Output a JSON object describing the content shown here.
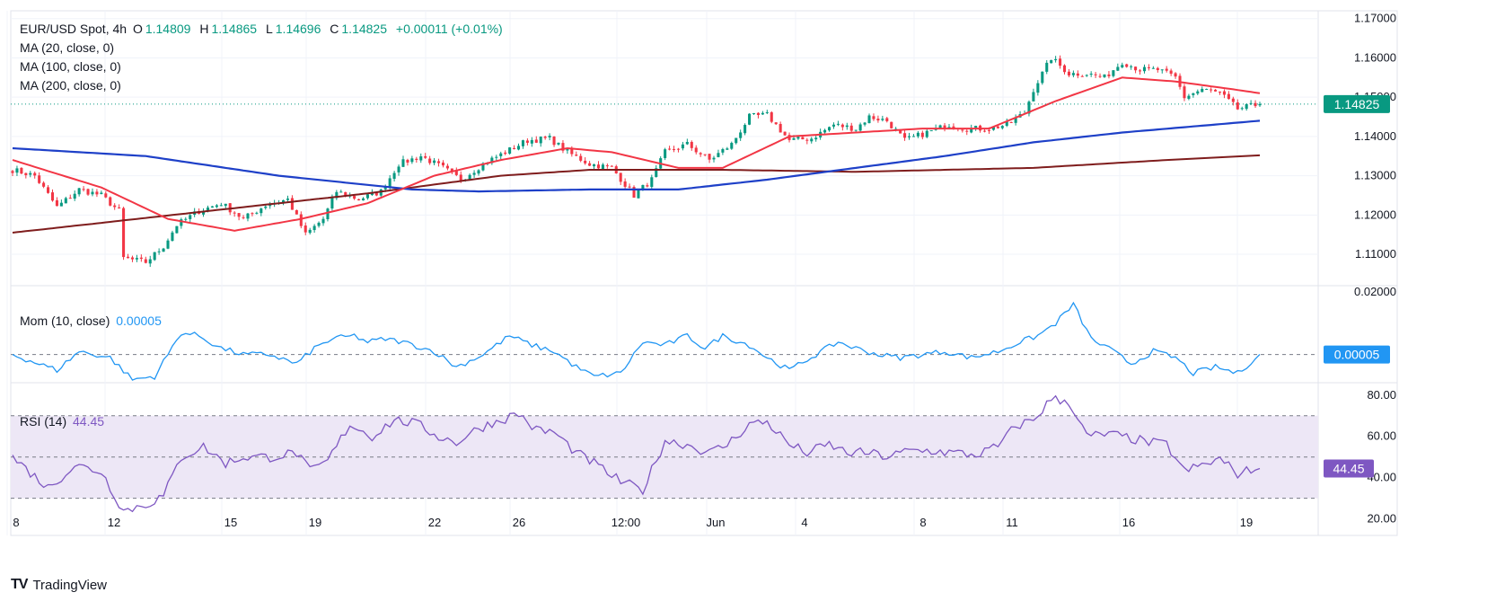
{
  "header": {
    "symbol": "EUR/USD Spot, 4h",
    "open_label": "O",
    "open": "1.14809",
    "high_label": "H",
    "high": "1.14865",
    "low_label": "L",
    "low": "1.14696",
    "close_label": "C",
    "close": "1.14825",
    "change": "+0.00011 (+0.01%)"
  },
  "legend": {
    "ma20": "MA (20, close, 0)",
    "ma100": "MA (100, close, 0)",
    "ma200": "MA (200, close, 0)",
    "mom_label": "Mom (10, close)",
    "mom_value": "0.00005",
    "rsi_label": "RSI (14)",
    "rsi_value": "44.45"
  },
  "brand": {
    "name": "TradingView"
  },
  "colors": {
    "up": "#089981",
    "down": "#f23645",
    "ma20": "#f23645",
    "ma100": "#1e40c8",
    "ma200": "#7f1d1d",
    "mom": "#2196f3",
    "rsi": "#7e57c2",
    "rsi_band": "#ede7f6",
    "grid": "#f0f3fa",
    "axis_text": "#131722"
  },
  "chart_data": [
    {
      "type": "candlestick",
      "title": "EUR/USD Spot, 4h",
      "price_ticks": [
        "1.17000",
        "1.16000",
        "1.15000",
        "1.14000",
        "1.13000",
        "1.12000",
        "1.11000"
      ],
      "last_price": "1.14825",
      "ylim": [
        1.102,
        1.172
      ],
      "x_ticks": [
        "8",
        "12",
        "15",
        "19",
        "22",
        "26",
        "12:00",
        "Jun",
        "4",
        "8",
        "11",
        "16",
        "19"
      ],
      "anchors": [
        [
          0,
          1.1315
        ],
        [
          5,
          1.13
        ],
        [
          10,
          1.122
        ],
        [
          15,
          1.1265
        ],
        [
          20,
          1.125
        ],
        [
          24,
          1.121
        ],
        [
          25,
          1.109
        ],
        [
          30,
          1.108
        ],
        [
          34,
          1.112
        ],
        [
          37,
          1.1175
        ],
        [
          42,
          1.121
        ],
        [
          47,
          1.123
        ],
        [
          52,
          1.119
        ],
        [
          57,
          1.1225
        ],
        [
          62,
          1.124
        ],
        [
          66,
          1.115
        ],
        [
          70,
          1.119
        ],
        [
          73,
          1.126
        ],
        [
          78,
          1.124
        ],
        [
          83,
          1.126
        ],
        [
          87,
          1.133
        ],
        [
          92,
          1.135
        ],
        [
          97,
          1.132
        ],
        [
          101,
          1.129
        ],
        [
          106,
          1.133
        ],
        [
          111,
          1.136
        ],
        [
          116,
          1.139
        ],
        [
          121,
          1.1395
        ],
        [
          125,
          1.136
        ],
        [
          130,
          1.133
        ],
        [
          135,
          1.132
        ],
        [
          140,
          1.125
        ],
        [
          144,
          1.129
        ],
        [
          147,
          1.136
        ],
        [
          152,
          1.138
        ],
        [
          157,
          1.134
        ],
        [
          162,
          1.138
        ],
        [
          166,
          1.145
        ],
        [
          170,
          1.1455
        ],
        [
          175,
          1.139
        ],
        [
          180,
          1.1395
        ],
        [
          185,
          1.143
        ],
        [
          190,
          1.142
        ],
        [
          193,
          1.145
        ],
        [
          197,
          1.144
        ],
        [
          201,
          1.139
        ],
        [
          206,
          1.141
        ],
        [
          211,
          1.143
        ],
        [
          215,
          1.142
        ],
        [
          220,
          1.142
        ],
        [
          224,
          1.143
        ],
        [
          228,
          1.146
        ],
        [
          230,
          1.152
        ],
        [
          234,
          1.16
        ],
        [
          238,
          1.156
        ],
        [
          242,
          1.156
        ],
        [
          246,
          1.155
        ],
        [
          250,
          1.159
        ],
        [
          254,
          1.157
        ],
        [
          258,
          1.157
        ],
        [
          262,
          1.155
        ],
        [
          264,
          1.15
        ],
        [
          268,
          1.152
        ],
        [
          272,
          1.151
        ],
        [
          276,
          1.147
        ],
        [
          281,
          1.1482
        ]
      ],
      "ma20": [
        [
          0,
          1.134
        ],
        [
          20,
          1.127
        ],
        [
          35,
          1.119
        ],
        [
          50,
          1.116
        ],
        [
          65,
          1.119
        ],
        [
          80,
          1.123
        ],
        [
          95,
          1.13
        ],
        [
          110,
          1.134
        ],
        [
          125,
          1.137
        ],
        [
          135,
          1.136
        ],
        [
          150,
          1.132
        ],
        [
          160,
          1.132
        ],
        [
          175,
          1.14
        ],
        [
          190,
          1.141
        ],
        [
          205,
          1.142
        ],
        [
          220,
          1.142
        ],
        [
          235,
          1.149
        ],
        [
          250,
          1.155
        ],
        [
          262,
          1.154
        ],
        [
          275,
          1.152
        ],
        [
          281,
          1.151
        ]
      ],
      "ma100": [
        [
          0,
          1.137
        ],
        [
          30,
          1.135
        ],
        [
          60,
          1.13
        ],
        [
          90,
          1.1265
        ],
        [
          105,
          1.126
        ],
        [
          130,
          1.1265
        ],
        [
          150,
          1.1265
        ],
        [
          170,
          1.129
        ],
        [
          190,
          1.132
        ],
        [
          210,
          1.135
        ],
        [
          230,
          1.1385
        ],
        [
          250,
          1.141
        ],
        [
          281,
          1.144
        ]
      ],
      "ma200": [
        [
          0,
          1.1155
        ],
        [
          40,
          1.1205
        ],
        [
          80,
          1.1255
        ],
        [
          110,
          1.13
        ],
        [
          130,
          1.1315
        ],
        [
          160,
          1.1315
        ],
        [
          190,
          1.131
        ],
        [
          230,
          1.132
        ],
        [
          260,
          1.134
        ],
        [
          281,
          1.1352
        ]
      ]
    },
    {
      "type": "line",
      "title": "Mom (10, close)",
      "name": "Mom (10, close)",
      "y_ticks": [
        "0.02000"
      ],
      "ylim": [
        -0.009,
        0.022
      ],
      "zero_line": 0,
      "last_value": "0.00005",
      "anchors": [
        [
          0,
          0
        ],
        [
          10,
          -0.005
        ],
        [
          15,
          0.001
        ],
        [
          22,
          -0.001
        ],
        [
          27,
          -0.008
        ],
        [
          32,
          -0.007
        ],
        [
          38,
          0.007
        ],
        [
          42,
          0.006
        ],
        [
          47,
          0.002
        ],
        [
          52,
          0
        ],
        [
          58,
          0
        ],
        [
          64,
          -0.003
        ],
        [
          68,
          0.002
        ],
        [
          72,
          0.005
        ],
        [
          77,
          0.006
        ],
        [
          80,
          0.004
        ],
        [
          84,
          0.005
        ],
        [
          88,
          0.004
        ],
        [
          95,
          0.001
        ],
        [
          100,
          -0.004
        ],
        [
          106,
          0
        ],
        [
          112,
          0.006
        ],
        [
          117,
          0.003
        ],
        [
          122,
          0.001
        ],
        [
          127,
          -0.004
        ],
        [
          131,
          -0.007
        ],
        [
          137,
          -0.006
        ],
        [
          142,
          0.004
        ],
        [
          147,
          0.003
        ],
        [
          152,
          0.006
        ],
        [
          156,
          0.002
        ],
        [
          160,
          0.006
        ],
        [
          166,
          0.003
        ],
        [
          170,
          -0.001
        ],
        [
          175,
          -0.005
        ],
        [
          181,
          0
        ],
        [
          186,
          0.004
        ],
        [
          190,
          0.002
        ],
        [
          195,
          0
        ],
        [
          200,
          -0.001
        ],
        [
          205,
          0
        ],
        [
          210,
          0.001
        ],
        [
          216,
          -0.001
        ],
        [
          222,
          0.001
        ],
        [
          227,
          0.004
        ],
        [
          231,
          0.006
        ],
        [
          235,
          0.01
        ],
        [
          239,
          0.016
        ],
        [
          243,
          0.005
        ],
        [
          248,
          0.001
        ],
        [
          252,
          -0.003
        ],
        [
          257,
          0.001
        ],
        [
          262,
          -0.001
        ],
        [
          266,
          -0.006
        ],
        [
          271,
          -0.004
        ],
        [
          276,
          -0.006
        ],
        [
          281,
          5e-05
        ]
      ]
    },
    {
      "type": "line",
      "title": "RSI (14)",
      "name": "RSI (14)",
      "y_ticks": [
        "80.00",
        "60.00",
        "40.00",
        "20.00"
      ],
      "ylim": [
        12,
        86
      ],
      "bands": [
        30,
        50,
        70
      ],
      "last_value": "44.45",
      "anchors": [
        [
          0,
          50
        ],
        [
          8,
          35
        ],
        [
          14,
          46
        ],
        [
          20,
          43
        ],
        [
          25,
          24
        ],
        [
          30,
          27
        ],
        [
          34,
          31
        ],
        [
          38,
          50
        ],
        [
          43,
          55
        ],
        [
          48,
          47
        ],
        [
          52,
          50
        ],
        [
          58,
          50
        ],
        [
          64,
          52
        ],
        [
          67,
          43
        ],
        [
          71,
          48
        ],
        [
          76,
          66
        ],
        [
          81,
          60
        ],
        [
          86,
          68
        ],
        [
          91,
          66
        ],
        [
          96,
          60
        ],
        [
          100,
          57
        ],
        [
          105,
          64
        ],
        [
          110,
          68
        ],
        [
          114,
          71
        ],
        [
          118,
          63
        ],
        [
          122,
          62
        ],
        [
          127,
          52
        ],
        [
          131,
          47
        ],
        [
          137,
          38
        ],
        [
          142,
          34
        ],
        [
          147,
          58
        ],
        [
          152,
          56
        ],
        [
          157,
          52
        ],
        [
          161,
          56
        ],
        [
          166,
          66
        ],
        [
          170,
          67
        ],
        [
          175,
          56
        ],
        [
          179,
          52
        ],
        [
          184,
          56
        ],
        [
          188,
          52
        ],
        [
          193,
          52
        ],
        [
          197,
          50
        ],
        [
          202,
          53
        ],
        [
          207,
          53
        ],
        [
          212,
          52
        ],
        [
          217,
          51
        ],
        [
          222,
          55
        ],
        [
          226,
          65
        ],
        [
          230,
          68
        ],
        [
          234,
          78
        ],
        [
          238,
          77
        ],
        [
          242,
          60
        ],
        [
          247,
          61
        ],
        [
          252,
          59
        ],
        [
          256,
          57
        ],
        [
          260,
          56
        ],
        [
          264,
          43
        ],
        [
          268,
          46
        ],
        [
          272,
          49
        ],
        [
          276,
          42
        ],
        [
          281,
          44.45
        ]
      ]
    }
  ]
}
